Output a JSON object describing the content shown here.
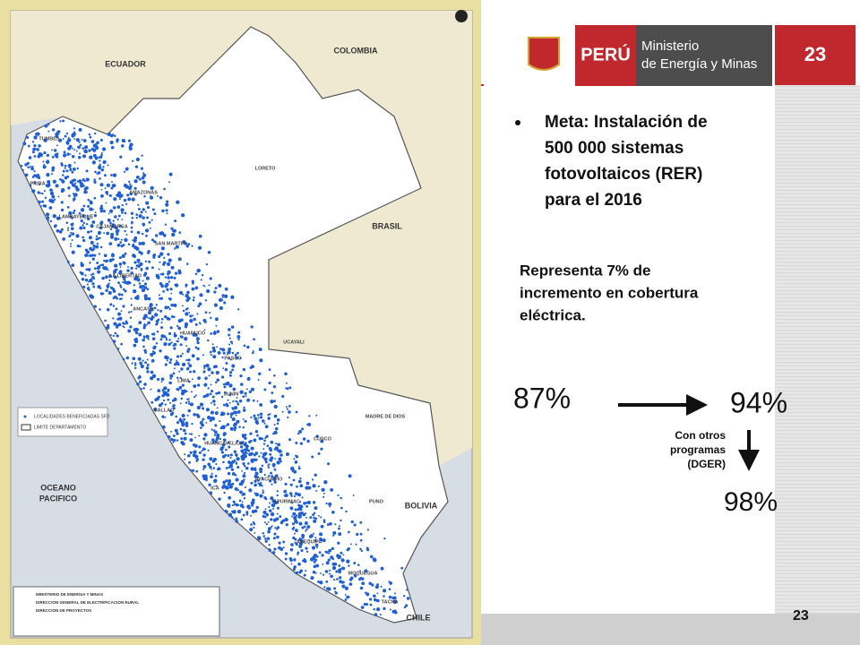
{
  "header": {
    "country": "PERÚ",
    "ministry": [
      "Ministerio",
      "de Energía y Minas"
    ],
    "slide_number": "23"
  },
  "bullet": [
    "Meta: Instalación de",
    "500 000 sistemas",
    "fotovoltaicos (RER)",
    "para el 2016"
  ],
  "note": [
    "Representa 7% de",
    "incremento en cobertura",
    "eléctrica."
  ],
  "flow": {
    "start": "87%",
    "middle": "94%",
    "end": "98%",
    "side_note": [
      "Con otros",
      "programas",
      "(DGER)"
    ]
  },
  "footer_number": "23",
  "map": {
    "countries": [
      "ECUADOR",
      "COLOMBIA",
      "BRASIL",
      "BOLIVIA",
      "CHILE"
    ],
    "ocean": [
      "OCEANO",
      "PACIFICO"
    ],
    "departments": [
      "TUMBES",
      "PIURA",
      "LAMBAYEQUE",
      "CAJAMARCA",
      "AMAZONAS",
      "LORETO",
      "SAN MARTIN",
      "LA LIBERTAD",
      "ANCASH",
      "HUANUCO",
      "UCAYALI",
      "PASCO",
      "JUNIN",
      "LIMA",
      "CALLAO",
      "HUANCAVELICA",
      "ICA",
      "AYACUCHO",
      "CUSCO",
      "MADRE DE DIOS",
      "APURIMAC",
      "AREQUIPA",
      "PUNO",
      "MOQUEGUA",
      "TACNA"
    ],
    "legend": [
      "LOCALIDADES BENEFICIADAS SFD",
      "LIMITE DEPARTAMENTO"
    ],
    "title_block": [
      "MINISTERIO DE ENERGIA Y MINAS",
      "DIRECCION GENERAL DE ELECTRIFICACION RURAL",
      "DIRECCION DE PROYECTOS"
    ]
  }
}
